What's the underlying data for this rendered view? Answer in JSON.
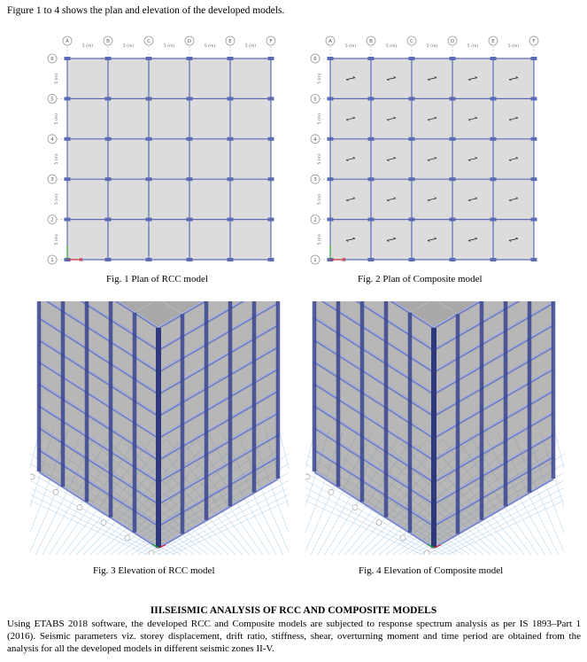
{
  "intro_text": "Figure 1 to 4 shows the plan and elevation of the developed models.",
  "plan_grid": {
    "column_labels": [
      "A",
      "B",
      "C",
      "D",
      "E",
      "F"
    ],
    "row_labels": [
      "6",
      "5",
      "4",
      "3",
      "2",
      "1"
    ],
    "span_label": "5 (m)",
    "bays_x": 5,
    "bays_y": 5
  },
  "figures": [
    {
      "caption": "Fig. 1  Plan of RCC model",
      "type": "plan",
      "slab_arrows": false
    },
    {
      "caption": "Fig. 2  Plan of Composite model",
      "type": "plan",
      "slab_arrows": true
    },
    {
      "caption": "Fig. 3  Elevation of RCC model",
      "type": "elevation"
    },
    {
      "caption": "Fig. 4  Elevation of Composite model",
      "type": "elevation"
    }
  ],
  "colors": {
    "slab_fill": "#dcdcdc",
    "beam": "#5b6bb4",
    "grid_bubble": "#9a9a9a",
    "frame_dark": "#3a448f",
    "ground_grid": "#bcd7ea"
  },
  "section": {
    "heading": "III.SEISMIC ANALYSIS OF RCC AND COMPOSITE MODELS",
    "paragraph": "Using ETABS 2018 software, the developed RCC and Composite models are subjected to response spectrum analysis as per IS 1893–Part 1 (2016). Seismic parameters viz. storey displacement, drift ratio, stiffness, shear, overturning moment and time period are obtained from the analysis for all the developed models in different seismic zones II-V."
  }
}
